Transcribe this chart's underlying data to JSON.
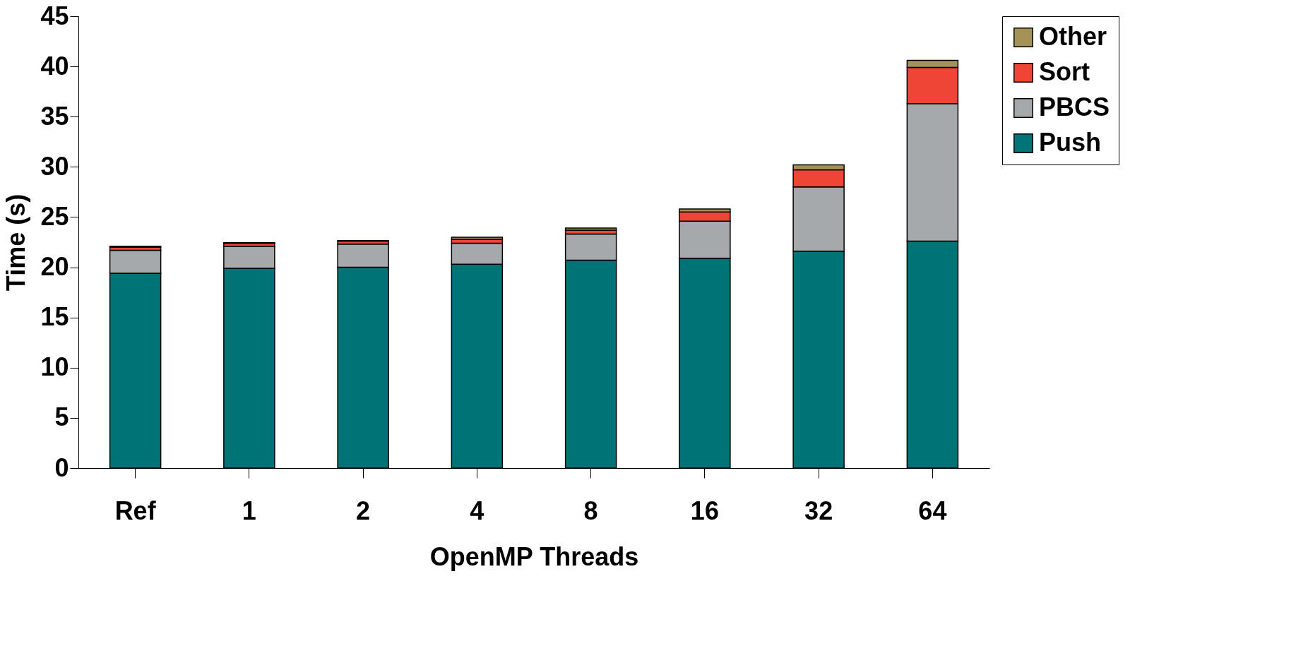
{
  "chart_data": {
    "type": "bar",
    "stacked": true,
    "xlabel": "OpenMP Threads",
    "ylabel": "Time (s)",
    "categories": [
      "Ref",
      "1",
      "2",
      "4",
      "8",
      "16",
      "32",
      "64"
    ],
    "series": [
      {
        "name": "Push",
        "color": "#007377",
        "values": [
          19.4,
          19.9,
          20.0,
          20.3,
          20.7,
          20.9,
          21.6,
          22.6
        ]
      },
      {
        "name": "PBCS",
        "color": "#a6a9ab",
        "values": [
          2.3,
          2.2,
          2.3,
          2.1,
          2.6,
          3.7,
          6.4,
          13.7
        ]
      },
      {
        "name": "Sort",
        "color": "#ef4537",
        "values": [
          0.3,
          0.3,
          0.3,
          0.4,
          0.4,
          0.9,
          1.7,
          3.6
        ]
      },
      {
        "name": "Other",
        "color": "#a59257",
        "values": [
          0.1,
          0.05,
          0.05,
          0.2,
          0.2,
          0.3,
          0.5,
          0.7
        ]
      }
    ],
    "ylim": [
      0,
      45
    ],
    "yticks": [
      0,
      5,
      10,
      15,
      20,
      25,
      30,
      35,
      40,
      45
    ],
    "grid": false,
    "legend": "right"
  }
}
